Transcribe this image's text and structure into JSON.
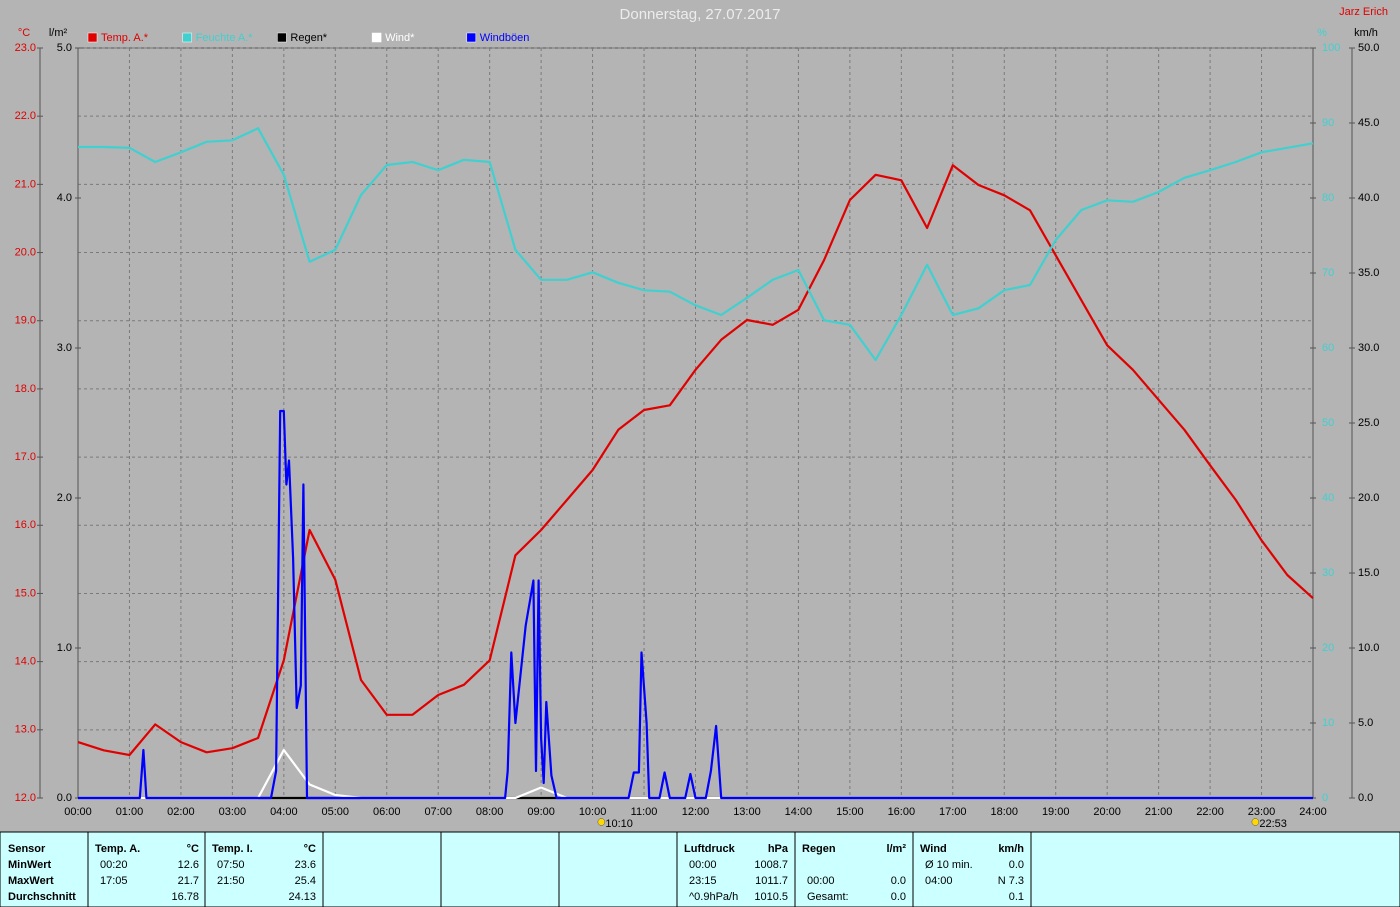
{
  "chart_data": {
    "type": "line",
    "title": "Donnerstag, 27.07.2017",
    "author": "Jarz Erich",
    "ylabel": "°C",
    "y2label": "%",
    "y3label": "km/h",
    "y4label": "l/m²",
    "x": [
      0,
      0.5,
      1,
      1.5,
      2,
      2.5,
      3,
      3.5,
      4,
      4.5,
      5,
      5.5,
      6,
      6.5,
      7,
      7.5,
      8,
      8.5,
      9,
      9.5,
      10,
      10.5,
      11,
      11.5,
      12,
      12.5,
      13,
      13.5,
      14,
      14.5,
      15,
      15.5,
      16,
      16.5,
      17,
      17.5,
      18,
      18.5,
      19,
      19.5,
      20,
      20.5,
      21,
      21.5,
      22,
      22.5,
      23,
      23.5,
      24
    ],
    "xlim": [
      0,
      24
    ],
    "xticks": [
      {
        "value": 0,
        "label": "00:00"
      },
      {
        "value": 1,
        "label": "01:00"
      },
      {
        "value": 2,
        "label": "02:00"
      },
      {
        "value": 3,
        "label": "03:00"
      },
      {
        "value": 4,
        "label": "04:00"
      },
      {
        "value": 5,
        "label": "05:00"
      },
      {
        "value": 6,
        "label": "06:00"
      },
      {
        "value": 7,
        "label": "07:00"
      },
      {
        "value": 8,
        "label": "08:00"
      },
      {
        "value": 9,
        "label": "09:00"
      },
      {
        "value": 10,
        "label": "10:00"
      },
      {
        "value": 11,
        "label": "11:00"
      },
      {
        "value": 12,
        "label": "12:00"
      },
      {
        "value": 13,
        "label": "13:00"
      },
      {
        "value": 14,
        "label": "14:00"
      },
      {
        "value": 15,
        "label": "15:00"
      },
      {
        "value": 16,
        "label": "16:00"
      },
      {
        "value": 17,
        "label": "17:00"
      },
      {
        "value": 18,
        "label": "18:00"
      },
      {
        "value": 19,
        "label": "19:00"
      },
      {
        "value": 20,
        "label": "20:00"
      },
      {
        "value": 21,
        "label": "21:00"
      },
      {
        "value": 22,
        "label": "22:00"
      },
      {
        "value": 23,
        "label": "23:00"
      },
      {
        "value": 24,
        "label": "24:00"
      }
    ],
    "ylim": [
      12,
      23
    ],
    "yticks": [
      {
        "value": 12,
        "label": "12.0"
      },
      {
        "value": 13,
        "label": "13.0"
      },
      {
        "value": 14,
        "label": "14.0"
      },
      {
        "value": 15,
        "label": "15.0"
      },
      {
        "value": 16,
        "label": "16.0"
      },
      {
        "value": 17,
        "label": "17.0"
      },
      {
        "value": 18,
        "label": "18.0"
      },
      {
        "value": 19,
        "label": "19.0"
      },
      {
        "value": 20,
        "label": "20.0"
      },
      {
        "value": 21,
        "label": "21.0"
      },
      {
        "value": 22,
        "label": "22.0"
      },
      {
        "value": 23,
        "label": "23.0"
      }
    ],
    "y2lim": [
      0,
      100
    ],
    "y2ticks": [
      0,
      10,
      20,
      30,
      40,
      50,
      60,
      70,
      80,
      90,
      100
    ],
    "y3lim": [
      0,
      50
    ],
    "y3ticks": [
      {
        "value": 0,
        "label": "0.0"
      },
      {
        "value": 5,
        "label": "5.0"
      },
      {
        "value": 10,
        "label": "10.0"
      },
      {
        "value": 15,
        "label": "15.0"
      },
      {
        "value": 20,
        "label": "20.0"
      },
      {
        "value": 25,
        "label": "25.0"
      },
      {
        "value": 30,
        "label": "30.0"
      },
      {
        "value": 35,
        "label": "35.0"
      },
      {
        "value": 40,
        "label": "40.0"
      },
      {
        "value": 45,
        "label": "45.0"
      },
      {
        "value": 50,
        "label": "50.0"
      }
    ],
    "y4lim": [
      0,
      5
    ],
    "y4ticks": [
      {
        "value": 0,
        "label": "0.0"
      },
      {
        "value": 1,
        "label": "1.0"
      },
      {
        "value": 2,
        "label": "2.0"
      },
      {
        "value": 3,
        "label": "3.0"
      },
      {
        "value": 4,
        "label": "4.0"
      },
      {
        "value": 5,
        "label": "5.0"
      }
    ],
    "grid": true,
    "series": [
      {
        "name": "Temp. A.*",
        "color": "#e00000",
        "axis": "y",
        "values": [
          12.82,
          12.7,
          12.63,
          13.08,
          12.82,
          12.67,
          12.73,
          12.88,
          14.02,
          15.93,
          15.2,
          13.73,
          13.22,
          13.22,
          13.51,
          13.66,
          14.02,
          15.56,
          15.93,
          16.37,
          16.81,
          17.4,
          17.69,
          17.76,
          18.28,
          18.72,
          19.01,
          18.94,
          19.16,
          19.89,
          20.77,
          21.14,
          21.06,
          20.36,
          21.28,
          20.99,
          20.84,
          20.62,
          19.96,
          19.3,
          18.64,
          18.28,
          17.84,
          17.4,
          16.88,
          16.37,
          15.78,
          15.27,
          14.93
        ]
      },
      {
        "name": "Feuchte A.*",
        "color": "#40d0d0",
        "axis": "y2",
        "values": [
          86.8,
          86.8,
          86.7,
          84.8,
          86.1,
          87.5,
          87.7,
          89.3,
          83.1,
          71.5,
          73.1,
          80.4,
          84.4,
          84.8,
          83.7,
          85.1,
          84.8,
          73.1,
          69.1,
          69.1,
          70.1,
          68.7,
          67.7,
          67.5,
          65.7,
          64.4,
          66.7,
          69.1,
          70.4,
          63.7,
          63.1,
          58.4,
          64.4,
          71.1,
          64.4,
          65.3,
          67.7,
          68.4,
          74.4,
          78.4,
          79.7,
          79.5,
          80.8,
          82.7,
          83.7,
          84.8,
          86.1,
          86.7,
          87.3
        ]
      },
      {
        "name": "Regen*",
        "color": "#000000",
        "axis": "y4",
        "values": [
          0,
          0,
          0,
          0,
          0,
          0,
          0,
          0,
          0,
          0,
          0,
          0,
          0,
          0,
          0,
          0,
          0,
          0,
          0,
          0,
          0,
          0,
          0,
          0,
          0,
          0,
          0,
          0,
          0,
          0,
          0,
          0,
          0,
          0,
          0,
          0,
          0,
          0,
          0,
          0,
          0,
          0,
          0,
          0,
          0,
          0,
          0,
          0,
          0
        ]
      },
      {
        "name": "Wind*",
        "color": "#ffffff",
        "axis": "y3",
        "values": [
          0,
          0,
          0,
          0,
          0,
          0,
          0,
          0,
          3.2,
          0.9,
          0.2,
          0,
          0,
          0,
          0,
          0,
          0,
          0,
          0.7,
          0,
          0,
          0,
          0,
          0,
          0,
          0,
          0,
          0,
          0,
          0,
          0,
          0,
          0,
          0,
          0,
          0,
          0,
          0,
          0,
          0,
          0,
          0,
          0,
          0,
          0,
          0,
          0,
          0,
          0
        ]
      },
      {
        "name": "Windböen",
        "color": "#0000ff",
        "axis": "y3",
        "x": [
          0,
          1.2,
          1.27,
          1.33,
          3.75,
          3.85,
          3.93,
          4,
          4.05,
          4.1,
          4.18,
          4.25,
          4.33,
          4.38,
          4.45,
          8.3,
          8.35,
          8.42,
          8.5,
          8.7,
          8.85,
          8.9,
          8.95,
          9,
          9.05,
          9.1,
          9.2,
          9.3,
          10.7,
          10.8,
          10.9,
          10.95,
          11.05,
          11.1,
          11.3,
          11.4,
          11.5,
          11.8,
          11.9,
          12,
          12.2,
          12.3,
          12.4,
          12.5,
          24
        ],
        "values": [
          0,
          0,
          3.2,
          0,
          0,
          1.8,
          25.8,
          25.8,
          20.9,
          22.5,
          16,
          6,
          7.5,
          20.9,
          0,
          0,
          1.8,
          9.7,
          5,
          11.5,
          14.5,
          1.8,
          14.5,
          4,
          1,
          6.4,
          1.5,
          0,
          0,
          1.7,
          1.7,
          9.7,
          5,
          0,
          0,
          1.7,
          0,
          0,
          1.6,
          0,
          0,
          1.8,
          4.8,
          0,
          0
        ]
      }
    ],
    "markers": [
      {
        "x": 10.17,
        "label": "10:10"
      },
      {
        "x": 22.88,
        "label": "22:53"
      }
    ]
  },
  "stats": {
    "sensor": {
      "header": "Sensor",
      "rows": [
        "MinWert",
        "MaxWert",
        "Durchschnitt"
      ]
    },
    "columns": [
      {
        "header": "Temp. A.",
        "unit": "°C",
        "rows": [
          {
            "time": "00:20",
            "value": "12.6"
          },
          {
            "time": "17:05",
            "value": "21.7"
          },
          {
            "value": "16.78"
          }
        ]
      },
      {
        "header": "Temp. I.",
        "unit": "°C",
        "rows": [
          {
            "time": "07:50",
            "value": "23.6"
          },
          {
            "time": "21:50",
            "value": "25.4"
          },
          {
            "value": "24.13"
          }
        ]
      },
      {
        "header": "Luftdruck",
        "unit": "hPa",
        "rows": [
          {
            "time": "00:00",
            "value": "1008.7"
          },
          {
            "time": "23:15",
            "value": "1011.7"
          },
          {
            "time": "^0.9hPa/h",
            "value": "1010.5"
          }
        ]
      },
      {
        "header": "Regen",
        "unit": "l/m²",
        "rows": [
          {},
          {
            "time": "00:00",
            "value": "0.0"
          },
          {
            "time": "Gesamt:",
            "value": "0.0"
          }
        ]
      },
      {
        "header": "Wind",
        "unit": "km/h",
        "rows": [
          {
            "time": "Ø 10 min.",
            "value": "0.0"
          },
          {
            "time": "04:00",
            "value": "N 7.3"
          },
          {
            "value": "0.1"
          }
        ]
      }
    ]
  }
}
